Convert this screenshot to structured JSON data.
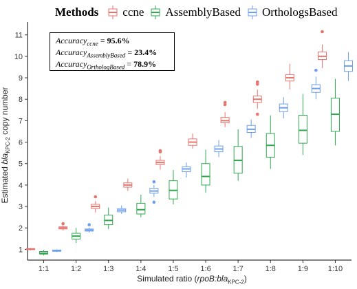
{
  "chart_data": {
    "type": "boxplot",
    "categories": [
      "1:1",
      "1:2",
      "1:3",
      "1:4",
      "1:5",
      "1:6",
      "1:7",
      "1:8",
      "1:9",
      "1:10"
    ],
    "xlabel": {
      "prefix": "Simulated ratio (",
      "gene": "rpoB:bla",
      "sub": "KPC-2",
      "suffix": ")"
    },
    "ylabel": {
      "prefix": "Estimated ",
      "gene": "bla",
      "sub": "KPC-2",
      "suffix": " copy number"
    },
    "ylim": [
      0.5,
      11.6
    ],
    "yticks": [
      1,
      2,
      3,
      4,
      5,
      6,
      7,
      8,
      9,
      10,
      11
    ],
    "grid": false,
    "legend": {
      "title": "Methods",
      "position": "top",
      "items": [
        "ccne",
        "AssemblyBased",
        "OrthologsBased"
      ]
    },
    "series": [
      {
        "name": "ccne",
        "color": "#E8736C",
        "boxes": [
          {
            "low": 0.95,
            "q1": 0.99,
            "median": 1.01,
            "q3": 1.04,
            "high": 1.07,
            "outliers": []
          },
          {
            "low": 1.88,
            "q1": 1.95,
            "median": 2.0,
            "q3": 2.05,
            "high": 2.12,
            "outliers": [
              2.2
            ]
          },
          {
            "low": 2.72,
            "q1": 2.9,
            "median": 3.0,
            "q3": 3.1,
            "high": 3.25,
            "outliers": [
              3.45
            ]
          },
          {
            "low": 3.72,
            "q1": 3.9,
            "median": 4.0,
            "q3": 4.1,
            "high": 4.3,
            "outliers": []
          },
          {
            "low": 4.72,
            "q1": 4.95,
            "median": 5.05,
            "q3": 5.15,
            "high": 5.35,
            "outliers": [
              5.55,
              5.6
            ]
          },
          {
            "low": 5.7,
            "q1": 5.85,
            "median": 6.0,
            "q3": 6.15,
            "high": 6.4,
            "outliers": []
          },
          {
            "low": 6.7,
            "q1": 6.9,
            "median": 7.0,
            "q3": 7.15,
            "high": 7.4,
            "outliers": [
              7.75,
              7.85
            ]
          },
          {
            "low": 7.55,
            "q1": 7.85,
            "median": 8.0,
            "q3": 8.15,
            "high": 8.45,
            "outliers": [
              7.3,
              8.7,
              8.8
            ]
          },
          {
            "low": 8.45,
            "q1": 8.85,
            "median": 9.0,
            "q3": 9.15,
            "high": 9.65,
            "outliers": []
          },
          {
            "low": 9.45,
            "q1": 9.85,
            "median": 10.0,
            "q3": 10.2,
            "high": 10.55,
            "outliers": [
              11.15
            ]
          }
        ]
      },
      {
        "name": "AssemblyBased",
        "color": "#2FA84F",
        "boxes": [
          {
            "low": 0.72,
            "q1": 0.78,
            "median": 0.82,
            "q3": 0.9,
            "high": 0.98,
            "outliers": []
          },
          {
            "low": 1.3,
            "q1": 1.48,
            "median": 1.62,
            "q3": 1.75,
            "high": 2.0,
            "outliers": []
          },
          {
            "low": 1.95,
            "q1": 2.15,
            "median": 2.35,
            "q3": 2.6,
            "high": 2.95,
            "outliers": []
          },
          {
            "low": 2.5,
            "q1": 2.65,
            "median": 2.85,
            "q3": 3.15,
            "high": 3.55,
            "outliers": []
          },
          {
            "low": 3.1,
            "q1": 3.35,
            "median": 3.75,
            "q3": 4.2,
            "high": 4.7,
            "outliers": []
          },
          {
            "low": 3.65,
            "q1": 4.0,
            "median": 4.4,
            "q3": 5.0,
            "high": 5.65,
            "outliers": []
          },
          {
            "low": 4.2,
            "q1": 4.55,
            "median": 5.15,
            "q3": 5.8,
            "high": 6.6,
            "outliers": []
          },
          {
            "low": 4.75,
            "q1": 5.3,
            "median": 5.85,
            "q3": 6.4,
            "high": 7.25,
            "outliers": []
          },
          {
            "low": 5.4,
            "q1": 5.95,
            "median": 6.55,
            "q3": 7.25,
            "high": 8.25,
            "outliers": []
          },
          {
            "low": 5.85,
            "q1": 6.5,
            "median": 7.3,
            "q3": 8.05,
            "high": 8.95,
            "outliers": []
          }
        ]
      },
      {
        "name": "OrthologsBased",
        "color": "#6D9EEB",
        "boxes": [
          {
            "low": 0.88,
            "q1": 0.91,
            "median": 0.94,
            "q3": 0.97,
            "high": 1.0,
            "outliers": []
          },
          {
            "low": 1.78,
            "q1": 1.85,
            "median": 1.9,
            "q3": 1.95,
            "high": 2.02,
            "outliers": [
              2.15
            ]
          },
          {
            "low": 2.65,
            "q1": 2.75,
            "median": 2.83,
            "q3": 2.9,
            "high": 3.05,
            "outliers": []
          },
          {
            "low": 3.45,
            "q1": 3.62,
            "median": 3.72,
            "q3": 3.85,
            "high": 4.0,
            "outliers": [
              3.2,
              4.15
            ]
          },
          {
            "low": 4.35,
            "q1": 4.62,
            "median": 4.75,
            "q3": 4.85,
            "high": 5.05,
            "outliers": []
          },
          {
            "low": 5.3,
            "q1": 5.55,
            "median": 5.68,
            "q3": 5.82,
            "high": 6.1,
            "outliers": []
          },
          {
            "low": 6.2,
            "q1": 6.45,
            "median": 6.6,
            "q3": 6.78,
            "high": 7.05,
            "outliers": []
          },
          {
            "low": 7.1,
            "q1": 7.42,
            "median": 7.6,
            "q3": 7.78,
            "high": 8.1,
            "outliers": []
          },
          {
            "low": 8.0,
            "q1": 8.32,
            "median": 8.5,
            "q3": 8.68,
            "high": 9.05,
            "outliers": [
              9.35
            ]
          },
          {
            "low": 8.85,
            "q1": 9.3,
            "median": 9.55,
            "q3": 9.8,
            "high": 10.2,
            "outliers": []
          }
        ]
      }
    ],
    "annotations": [
      {
        "label": "Accuracy",
        "sub": "ccne",
        "value": "95.6%"
      },
      {
        "label": "Accuracy",
        "sub": "AssemblyBased",
        "value": "23.4%"
      },
      {
        "label": "Accuracy",
        "sub": "OrthologBased",
        "value": "78.9%"
      }
    ]
  }
}
